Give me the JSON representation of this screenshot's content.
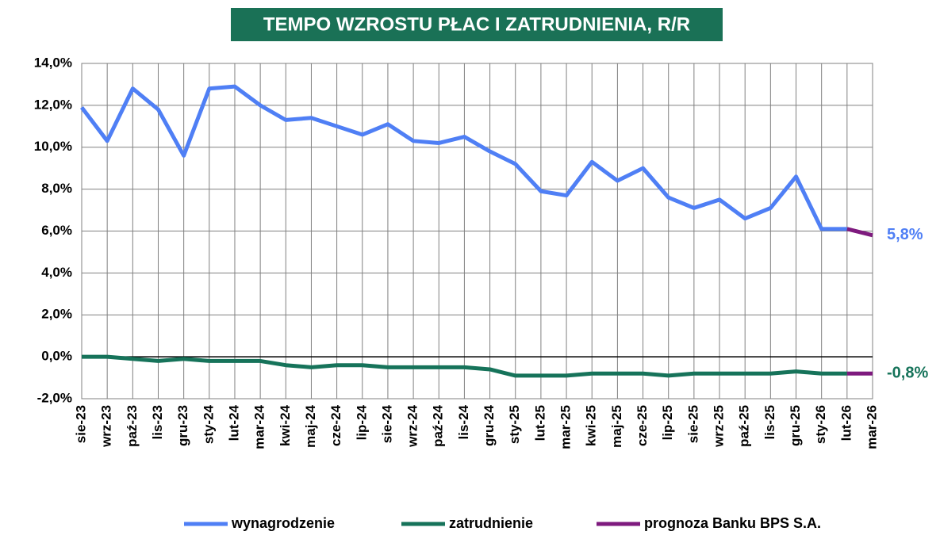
{
  "chart_data": {
    "type": "line",
    "title": "TEMPO WZROSTU PŁAC I ZATRUDNIENIA, R/R",
    "title_background": "#1a7156",
    "categories": [
      "sie-23",
      "wrz-23",
      "paź-23",
      "lis-23",
      "gru-23",
      "sty-24",
      "lut-24",
      "mar-24",
      "kwi-24",
      "maj-24",
      "cze-24",
      "lip-24",
      "sie-24",
      "wrz-24",
      "paź-24",
      "lis-24",
      "gru-24",
      "sty-25",
      "lut-25",
      "mar-25",
      "kwi-25",
      "maj-25",
      "cze-25",
      "lip-25",
      "sie-25",
      "wrz-25",
      "paź-25",
      "lis-25",
      "gru-25",
      "sty-26",
      "lut-26",
      "mar-26"
    ],
    "series": [
      {
        "name": "wynagrodzenie",
        "color": "#4f7ff5",
        "values": [
          11.9,
          10.3,
          12.8,
          11.8,
          9.6,
          12.8,
          12.9,
          12.0,
          11.3,
          11.4,
          11.0,
          10.6,
          11.1,
          10.3,
          10.2,
          10.5,
          9.8,
          9.2,
          7.9,
          7.7,
          9.3,
          8.4,
          9.0,
          7.6,
          7.1,
          7.5,
          6.6,
          7.1,
          8.6,
          6.1,
          6.1,
          null
        ]
      },
      {
        "name": "zatrudnienie",
        "color": "#16735a",
        "values": [
          0.0,
          0.0,
          -0.1,
          -0.2,
          -0.1,
          -0.2,
          -0.2,
          -0.2,
          -0.4,
          -0.5,
          -0.4,
          -0.4,
          -0.5,
          -0.5,
          -0.5,
          -0.5,
          -0.6,
          -0.9,
          -0.9,
          -0.9,
          -0.8,
          -0.8,
          -0.8,
          -0.9,
          -0.8,
          -0.8,
          -0.8,
          -0.8,
          -0.7,
          -0.8,
          -0.8,
          null
        ]
      },
      {
        "name": "prognoza Banku BPS S.A.",
        "color": "#7e1a7e",
        "values": [
          null,
          null,
          null,
          null,
          null,
          null,
          null,
          null,
          null,
          null,
          null,
          null,
          null,
          null,
          null,
          null,
          null,
          null,
          null,
          null,
          null,
          null,
          null,
          null,
          null,
          null,
          null,
          null,
          null,
          null,
          6.1,
          5.8
        ]
      },
      {
        "color": "#7e1a7e",
        "values": [
          null,
          null,
          null,
          null,
          null,
          null,
          null,
          null,
          null,
          null,
          null,
          null,
          null,
          null,
          null,
          null,
          null,
          null,
          null,
          null,
          null,
          null,
          null,
          null,
          null,
          null,
          null,
          null,
          null,
          null,
          -0.8,
          -0.8
        ]
      }
    ],
    "annotations": [
      {
        "text": "5,8%",
        "value": 5.8,
        "color": "#4f7ff5"
      },
      {
        "text": "-0,8%",
        "value": -0.8,
        "color": "#16735a"
      }
    ],
    "ylim": [
      -2,
      14
    ],
    "yticks": [
      {
        "value": -2,
        "label": "-2,0%"
      },
      {
        "value": 0,
        "label": "0,0%"
      },
      {
        "value": 2,
        "label": "2,0%"
      },
      {
        "value": 4,
        "label": "4,0%"
      },
      {
        "value": 6,
        "label": "6,0%"
      },
      {
        "value": 8,
        "label": "8,0%"
      },
      {
        "value": 10,
        "label": "10,0%"
      },
      {
        "value": 12,
        "label": "12,0%"
      },
      {
        "value": 14,
        "label": "14,0%"
      }
    ],
    "grid": true,
    "legend": "bottom"
  }
}
